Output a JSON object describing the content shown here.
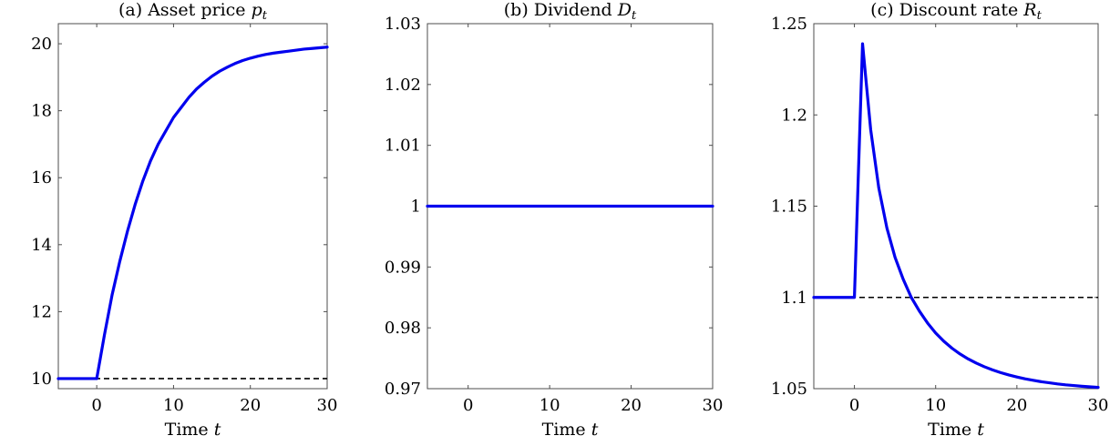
{
  "chart_data": [
    {
      "type": "line",
      "title": "(a) Asset price ",
      "title_symbol": "p",
      "title_subscript": "t",
      "xlabel": "Time ",
      "xlabel_symbol": "t",
      "xlim": [
        -5,
        30
      ],
      "ylim": [
        9.7,
        20.6
      ],
      "xticks": [
        0,
        10,
        20,
        30
      ],
      "yticks": [
        10,
        12,
        14,
        16,
        18,
        20
      ],
      "ytick_labels": [
        "10",
        "12",
        "14",
        "16",
        "18",
        "20"
      ],
      "grid": false,
      "line_color": "#0000ee",
      "ref_color": "#000000",
      "reference": 10,
      "series": [
        {
          "x": [
            -5,
            -4,
            -3,
            -2,
            -1,
            0,
            1,
            2,
            3,
            4,
            5,
            6,
            7,
            8,
            9,
            10,
            11,
            12,
            13,
            14,
            15,
            16,
            17,
            18,
            19,
            20,
            21,
            22,
            23,
            24,
            25,
            26,
            27,
            28,
            29,
            30
          ],
          "y": [
            10,
            10,
            10,
            10,
            10,
            10,
            11.3,
            12.5,
            13.5,
            14.4,
            15.2,
            15.9,
            16.5,
            17.0,
            17.4,
            17.8,
            18.1,
            18.4,
            18.65,
            18.85,
            19.03,
            19.18,
            19.3,
            19.41,
            19.5,
            19.57,
            19.63,
            19.68,
            19.72,
            19.75,
            19.78,
            19.81,
            19.84,
            19.86,
            19.88,
            19.9
          ]
        }
      ]
    },
    {
      "type": "line",
      "title": "(b) Dividend ",
      "title_symbol": "D",
      "title_subscript": "t",
      "xlabel": "Time ",
      "xlabel_symbol": "t",
      "xlim": [
        -5,
        30
      ],
      "ylim": [
        0.97,
        1.03
      ],
      "xticks": [
        0,
        10,
        20,
        30
      ],
      "yticks": [
        0.97,
        0.98,
        0.99,
        1,
        1.01,
        1.02,
        1.03
      ],
      "ytick_labels": [
        "0.97",
        "0.98",
        "0.99",
        "1",
        "1.01",
        "1.02",
        "1.03"
      ],
      "grid": false,
      "line_color": "#0000ee",
      "ref_color": "#000000",
      "reference": 1,
      "series": [
        {
          "x": [
            -5,
            30
          ],
          "y": [
            1,
            1
          ]
        }
      ]
    },
    {
      "type": "line",
      "title": "(c) Discount rate ",
      "title_symbol": "R",
      "title_subscript": "t",
      "xlabel": "Time ",
      "xlabel_symbol": "t",
      "xlim": [
        -5,
        30
      ],
      "ylim": [
        1.05,
        1.25
      ],
      "xticks": [
        0,
        10,
        20,
        30
      ],
      "yticks": [
        1.05,
        1.1,
        1.15,
        1.2,
        1.25
      ],
      "ytick_labels": [
        "1.05",
        "1.1",
        "1.15",
        "1.2",
        "1.25"
      ],
      "grid": false,
      "line_color": "#0000ee",
      "ref_color": "#000000",
      "reference": 1.1,
      "series": [
        {
          "x": [
            -5,
            -4,
            -3,
            -2,
            -1,
            0,
            1,
            2,
            3,
            4,
            5,
            6,
            7,
            8,
            9,
            10,
            11,
            12,
            13,
            14,
            15,
            16,
            17,
            18,
            19,
            20,
            21,
            22,
            23,
            24,
            25,
            26,
            27,
            28,
            29,
            30
          ],
          "y": [
            1.1,
            1.1,
            1.1,
            1.1,
            1.1,
            1.1,
            1.239,
            1.192,
            1.16,
            1.138,
            1.122,
            1.11,
            1.1,
            1.0925,
            1.086,
            1.0805,
            1.076,
            1.0722,
            1.069,
            1.0663,
            1.064,
            1.062,
            1.0603,
            1.0588,
            1.0575,
            1.0564,
            1.0554,
            1.0546,
            1.0538,
            1.0532,
            1.0526,
            1.0521,
            1.0517,
            1.0513,
            1.051,
            1.0507
          ]
        }
      ]
    }
  ]
}
